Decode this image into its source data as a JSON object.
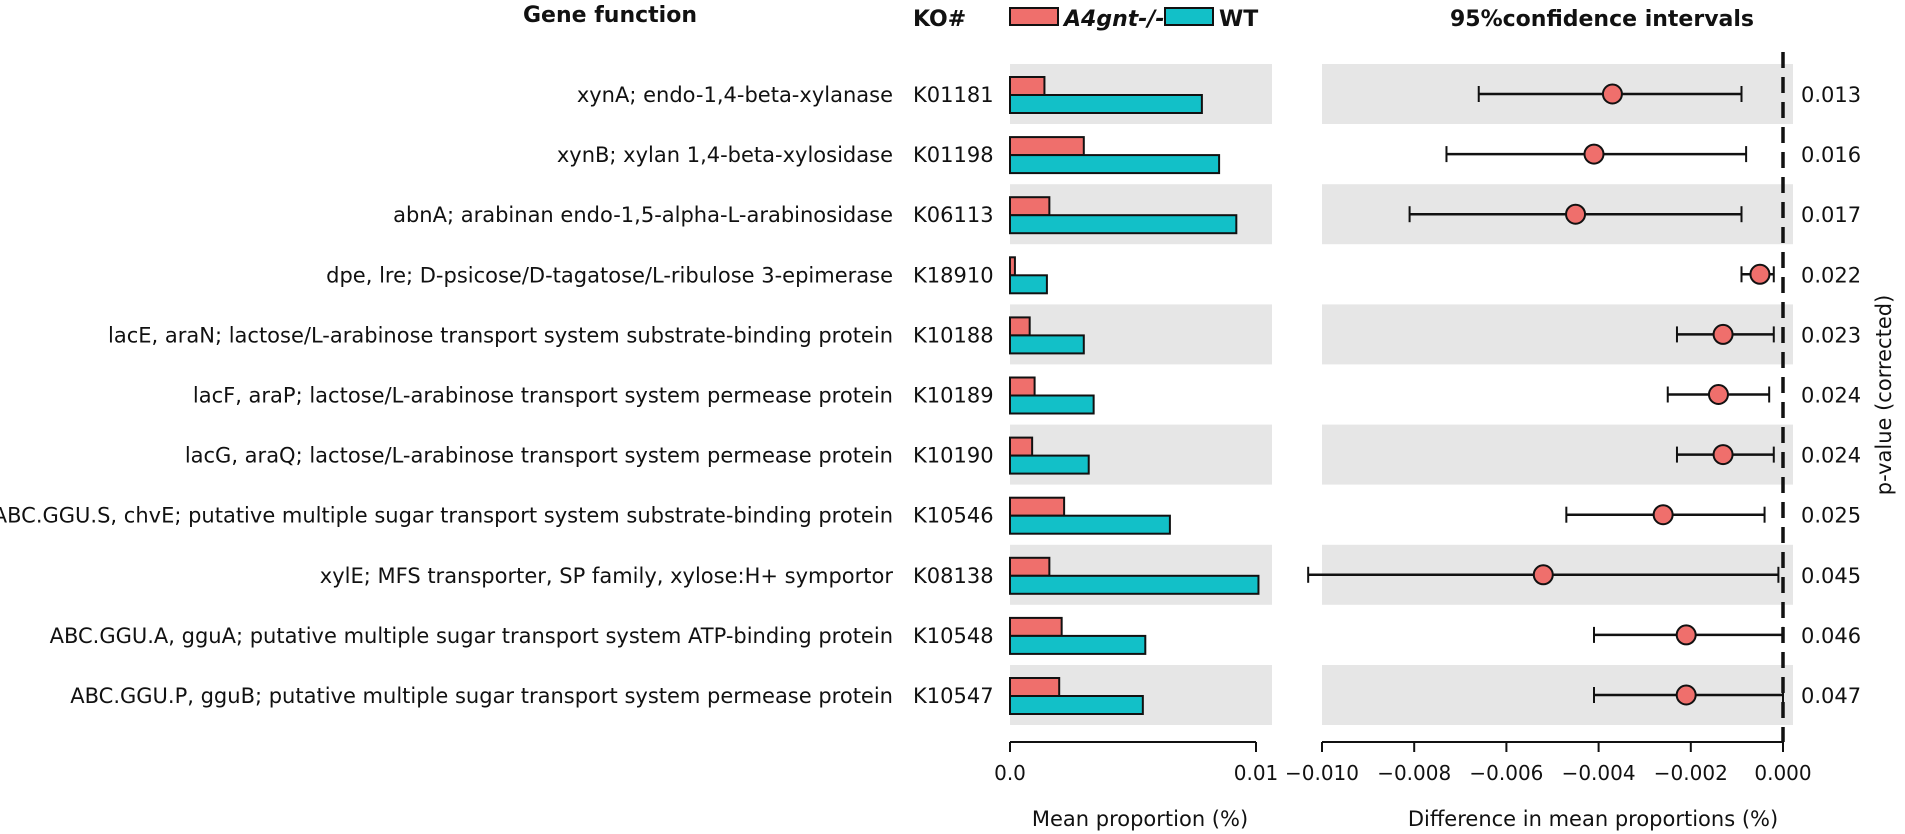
{
  "chart_data": {
    "type": "extended_error_bar",
    "headers": {
      "gene_function": "Gene function",
      "ko": "KO#",
      "ci_title": "95%confidence intervals",
      "pvalue_axis": "p-value (corrected)"
    },
    "legend": [
      {
        "name": "A4gnt-/-",
        "color": "#ef6f6c"
      },
      {
        "name": "WT",
        "color": "#12c0c8"
      }
    ],
    "bar_axis": {
      "xlabel": "Mean proportion (%)",
      "xlim": [
        0,
        0.01
      ],
      "ticks": [
        "0.0",
        "0.01"
      ]
    },
    "ci_axis": {
      "xlabel": "Difference in mean proportions (%)",
      "xlim": [
        -0.01,
        0.0
      ],
      "ticks": [
        "−0.010",
        "−0.008",
        "−0.006",
        "−0.004",
        "−0.002",
        "0.000"
      ]
    },
    "rows": [
      {
        "gene": "xynA; endo-1,4-beta-xylanase",
        "ko": "K01181",
        "mutant": 0.0014,
        "wt": 0.0078,
        "diff": -0.0037,
        "ci_low": -0.0066,
        "ci_high": -0.0009,
        "p": "0.013"
      },
      {
        "gene": "xynB; xylan 1,4-beta-xylosidase",
        "ko": "K01198",
        "mutant": 0.003,
        "wt": 0.0085,
        "diff": -0.0041,
        "ci_low": -0.0073,
        "ci_high": -0.0008,
        "p": "0.016"
      },
      {
        "gene": "abnA; arabinan endo-1,5-alpha-L-arabinosidase",
        "ko": "K06113",
        "mutant": 0.0016,
        "wt": 0.0092,
        "diff": -0.0045,
        "ci_low": -0.0081,
        "ci_high": -0.0009,
        "p": "0.017"
      },
      {
        "gene": "dpe, lre; D-psicose/D-tagatose/L-ribulose 3-epimerase",
        "ko": "K18910",
        "mutant": 0.0002,
        "wt": 0.0015,
        "diff": -0.0005,
        "ci_low": -0.0009,
        "ci_high": -0.0002,
        "p": "0.022"
      },
      {
        "gene": "lacE, araN; lactose/L-arabinose transport system substrate-binding protein",
        "ko": "K10188",
        "mutant": 0.0008,
        "wt": 0.003,
        "diff": -0.0013,
        "ci_low": -0.0023,
        "ci_high": -0.0002,
        "p": "0.023"
      },
      {
        "gene": "lacF, araP; lactose/L-arabinose transport system permease protein",
        "ko": "K10189",
        "mutant": 0.001,
        "wt": 0.0034,
        "diff": -0.0014,
        "ci_low": -0.0025,
        "ci_high": -0.0003,
        "p": "0.024"
      },
      {
        "gene": "lacG, araQ; lactose/L-arabinose transport system permease protein",
        "ko": "K10190",
        "mutant": 0.0009,
        "wt": 0.0032,
        "diff": -0.0013,
        "ci_low": -0.0023,
        "ci_high": -0.0002,
        "p": "0.024"
      },
      {
        "gene": "ABC.GGU.S, chvE; putative multiple sugar transport system substrate-binding protein",
        "ko": "K10546",
        "mutant": 0.0022,
        "wt": 0.0065,
        "diff": -0.0026,
        "ci_low": -0.0047,
        "ci_high": -0.0004,
        "p": "0.025"
      },
      {
        "gene": "xylE; MFS transporter, SP family, xylose:H+ symportor",
        "ko": "K08138",
        "mutant": 0.0016,
        "wt": 0.0101,
        "diff": -0.0052,
        "ci_low": -0.0103,
        "ci_high": -0.0001,
        "p": "0.045"
      },
      {
        "gene": "ABC.GGU.A, gguA; putative multiple sugar transport system ATP-binding protein",
        "ko": "K10548",
        "mutant": 0.0021,
        "wt": 0.0055,
        "diff": -0.0021,
        "ci_low": -0.0041,
        "ci_high": 0.0,
        "p": "0.046"
      },
      {
        "gene": "ABC.GGU.P, gguB; putative multiple sugar transport system permease protein",
        "ko": "K10547",
        "mutant": 0.002,
        "wt": 0.0054,
        "diff": -0.0021,
        "ci_low": -0.0041,
        "ci_high": 0.0,
        "p": "0.047"
      }
    ],
    "colors": {
      "band": "#e6e6e6",
      "mutant": "#ef6f6c",
      "wt": "#12c0c8",
      "point": "#ef6f6c",
      "line": "#111111"
    }
  }
}
